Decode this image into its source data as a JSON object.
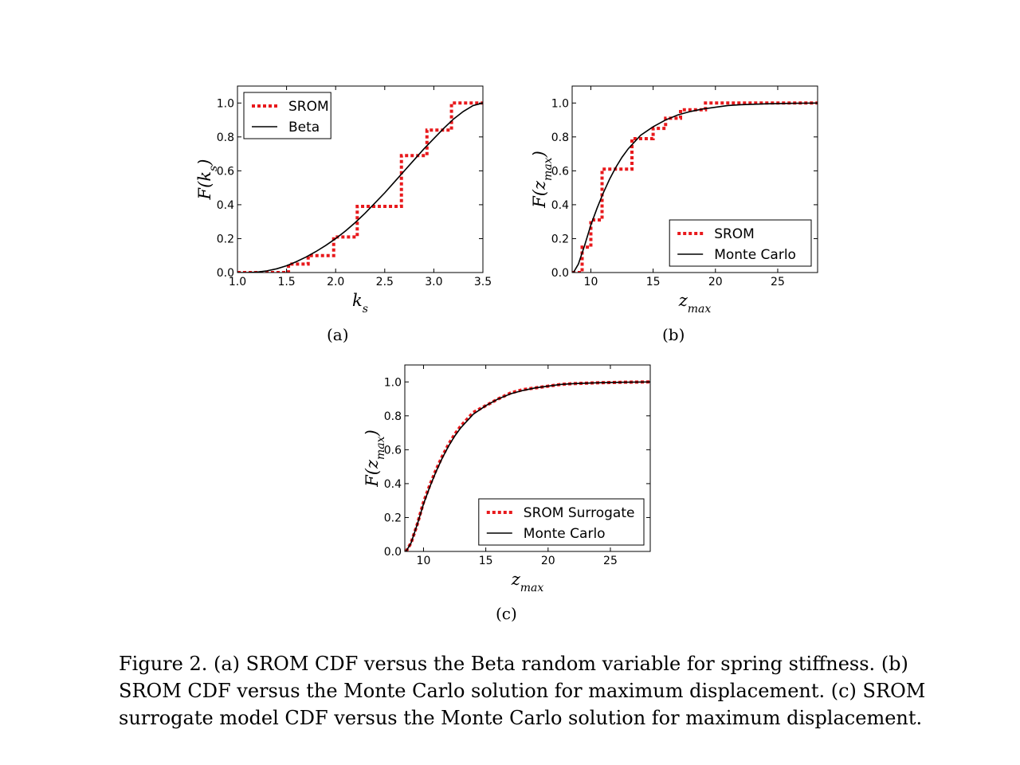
{
  "chart_data": [
    {
      "type": "line",
      "panel_label": "(a)",
      "xlabel": "k_s",
      "ylabel": "F(k_s)",
      "xlim": [
        1.0,
        3.5
      ],
      "ylim": [
        0.0,
        1.1
      ],
      "xticks": [
        "1.0",
        "1.5",
        "2.0",
        "2.5",
        "3.0",
        "3.5"
      ],
      "yticks": [
        "0.0",
        "0.2",
        "0.4",
        "0.6",
        "0.8",
        "1.0"
      ],
      "legend_position": "top-left",
      "series": [
        {
          "name": "SROM",
          "style": "step-dotted",
          "color": "#e8191c",
          "x": [
            1.0,
            1.52,
            1.72,
            1.98,
            2.22,
            2.67,
            2.93,
            3.18,
            3.5
          ],
          "y": [
            0.0,
            0.05,
            0.1,
            0.21,
            0.39,
            0.69,
            0.84,
            1.0,
            1.0
          ]
        },
        {
          "name": "Beta",
          "style": "solid",
          "color": "#000000",
          "x": [
            1.0,
            1.1,
            1.2,
            1.3,
            1.4,
            1.5,
            1.6,
            1.7,
            1.8,
            1.9,
            2.0,
            2.1,
            2.2,
            2.3,
            2.4,
            2.5,
            2.6,
            2.7,
            2.8,
            2.9,
            3.0,
            3.1,
            3.2,
            3.3,
            3.4,
            3.5
          ],
          "y": [
            0.0,
            0.0,
            0.003,
            0.01,
            0.022,
            0.04,
            0.064,
            0.092,
            0.124,
            0.16,
            0.2,
            0.245,
            0.295,
            0.35,
            0.41,
            0.47,
            0.535,
            0.6,
            0.665,
            0.73,
            0.79,
            0.85,
            0.905,
            0.95,
            0.985,
            1.0
          ]
        }
      ]
    },
    {
      "type": "line",
      "panel_label": "(b)",
      "xlabel": "z_max",
      "ylabel": "F(z_max)",
      "xlim": [
        8.5,
        28.2
      ],
      "ylim": [
        0.0,
        1.1
      ],
      "xticks": [
        "10",
        "15",
        "20",
        "25"
      ],
      "yticks": [
        "0.0",
        "0.2",
        "0.4",
        "0.6",
        "0.8",
        "1.0"
      ],
      "legend_position": "bottom-right",
      "series": [
        {
          "name": "SROM",
          "style": "step-dotted",
          "color": "#e8191c",
          "x": [
            8.5,
            9.3,
            10.0,
            10.9,
            13.3,
            15.0,
            16.0,
            17.2,
            19.2,
            28.2
          ],
          "y": [
            0.0,
            0.15,
            0.31,
            0.61,
            0.79,
            0.85,
            0.91,
            0.96,
            1.0,
            1.0
          ]
        },
        {
          "name": "Monte Carlo",
          "style": "solid",
          "color": "#000000",
          "x": [
            8.6,
            9.0,
            9.5,
            10.0,
            10.5,
            11.0,
            11.5,
            12.0,
            12.5,
            13.0,
            13.5,
            14.0,
            15.0,
            16.0,
            17.0,
            18.0,
            19.0,
            20.0,
            21.0,
            22.0,
            24.0,
            26.0,
            28.2
          ],
          "y": [
            0.0,
            0.05,
            0.16,
            0.28,
            0.38,
            0.47,
            0.55,
            0.62,
            0.68,
            0.73,
            0.77,
            0.81,
            0.86,
            0.9,
            0.93,
            0.95,
            0.965,
            0.975,
            0.985,
            0.99,
            0.995,
            0.998,
            1.0
          ]
        }
      ]
    },
    {
      "type": "line",
      "panel_label": "(c)",
      "xlabel": "z_max",
      "ylabel": "F(z_max)",
      "xlim": [
        8.5,
        28.2
      ],
      "ylim": [
        0.0,
        1.1
      ],
      "xticks": [
        "10",
        "15",
        "20",
        "25"
      ],
      "yticks": [
        "0.0",
        "0.2",
        "0.4",
        "0.6",
        "0.8",
        "1.0"
      ],
      "legend_position": "bottom-right",
      "series": [
        {
          "name": "SROM Surrogate",
          "style": "dotted",
          "color": "#e8191c",
          "x": [
            8.6,
            9.0,
            9.5,
            10.0,
            10.5,
            11.0,
            11.5,
            12.0,
            12.5,
            13.0,
            13.5,
            14.0,
            15.0,
            16.0,
            17.0,
            18.0,
            19.0,
            20.0,
            21.0,
            22.0,
            24.0,
            26.0,
            28.2
          ],
          "y": [
            0.0,
            0.05,
            0.16,
            0.29,
            0.39,
            0.48,
            0.56,
            0.63,
            0.69,
            0.74,
            0.78,
            0.82,
            0.86,
            0.9,
            0.935,
            0.955,
            0.965,
            0.975,
            0.985,
            0.99,
            0.995,
            0.998,
            1.0
          ]
        },
        {
          "name": "Monte Carlo",
          "style": "solid",
          "color": "#000000",
          "x": [
            8.6,
            9.0,
            9.5,
            10.0,
            10.5,
            11.0,
            11.5,
            12.0,
            12.5,
            13.0,
            13.5,
            14.0,
            15.0,
            16.0,
            17.0,
            18.0,
            19.0,
            20.0,
            21.0,
            22.0,
            24.0,
            26.0,
            28.2
          ],
          "y": [
            0.0,
            0.05,
            0.16,
            0.28,
            0.38,
            0.47,
            0.55,
            0.62,
            0.68,
            0.73,
            0.77,
            0.81,
            0.86,
            0.9,
            0.93,
            0.95,
            0.965,
            0.975,
            0.985,
            0.99,
            0.995,
            0.998,
            1.0
          ]
        }
      ]
    }
  ],
  "caption": {
    "line1": "Figure 2. (a) SROM CDF versus the Beta random variable for spring stiffness. (b)",
    "line2": "SROM CDF versus the Monte Carlo solution for maximum displacement. (c) SROM",
    "line3": "surrogate model CDF versus the Monte Carlo solution for maximum displacement."
  }
}
